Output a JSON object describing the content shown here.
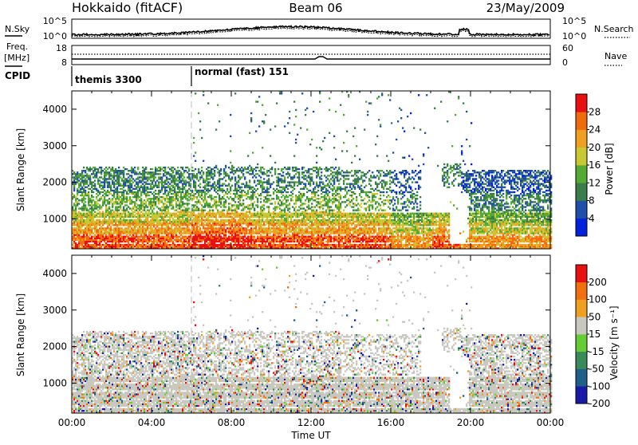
{
  "header": {
    "radar": "Hokkaido (fitACF)",
    "beam": "Beam 06",
    "date": "23/May/2009"
  },
  "noise_panel": {
    "left_label": "N.Sky",
    "right_label": "N.Search",
    "left_ticks": [
      "10^5",
      "10^0"
    ],
    "right_ticks": [
      "10^5",
      "10^0"
    ]
  },
  "freq_panel": {
    "left_label_1": "Freq.",
    "left_label_2": "[MHz]",
    "right_label": "Nave",
    "left_ticks": [
      "18",
      "8"
    ],
    "right_ticks": [
      "60",
      "0"
    ]
  },
  "cpid": {
    "label": "CPID",
    "segments": [
      {
        "name": "themis 3300",
        "start_hour": 0,
        "end_hour": 6
      },
      {
        "name": "normal (fast) 151",
        "start_hour": 6,
        "end_hour": 24
      }
    ]
  },
  "time_axis": {
    "xlabel": "Time UT",
    "ticks": [
      "00:00",
      "04:00",
      "08:00",
      "12:00",
      "16:00",
      "20:00",
      "00:00"
    ],
    "tick_hours": [
      0,
      4,
      8,
      12,
      16,
      20,
      24
    ],
    "xlim": [
      0,
      24
    ]
  },
  "chart_data": [
    {
      "type": "heatmap",
      "name": "power",
      "ylabel": "Slant Range [km]",
      "yticks": [
        1000,
        2000,
        3000,
        4000
      ],
      "ylim": [
        180,
        4500
      ],
      "xlim": [
        0,
        24
      ],
      "colorbar_label": "Power [dB]",
      "colorbar_ticks": [
        "4",
        "8",
        "12",
        "16",
        "20",
        "24",
        "28"
      ],
      "colorbar_range": [
        0,
        32
      ],
      "colorbar_colors": [
        "#0022dd",
        "#1f4fa8",
        "#3a7d4a",
        "#55aa33",
        "#c8c832",
        "#f0a020",
        "#f06a10",
        "#e81010"
      ]
    },
    {
      "type": "heatmap",
      "name": "velocity",
      "ylabel": "Slant Range [km]",
      "yticks": [
        1000,
        2000,
        3000,
        4000
      ],
      "ylim": [
        180,
        4500
      ],
      "xlim": [
        0,
        24
      ],
      "colorbar_label": "Velocity [m s⁻¹]",
      "colorbar_ticks": [
        "200",
        "100",
        "50",
        "15",
        "-15",
        "-50",
        "-100",
        "-200"
      ],
      "colorbar_colors": [
        "#1a1aa8",
        "#1f5f8a",
        "#3a8a5a",
        "#66cc33",
        "#c8c8c0",
        "#f0a020",
        "#f07010",
        "#e81010"
      ]
    }
  ]
}
